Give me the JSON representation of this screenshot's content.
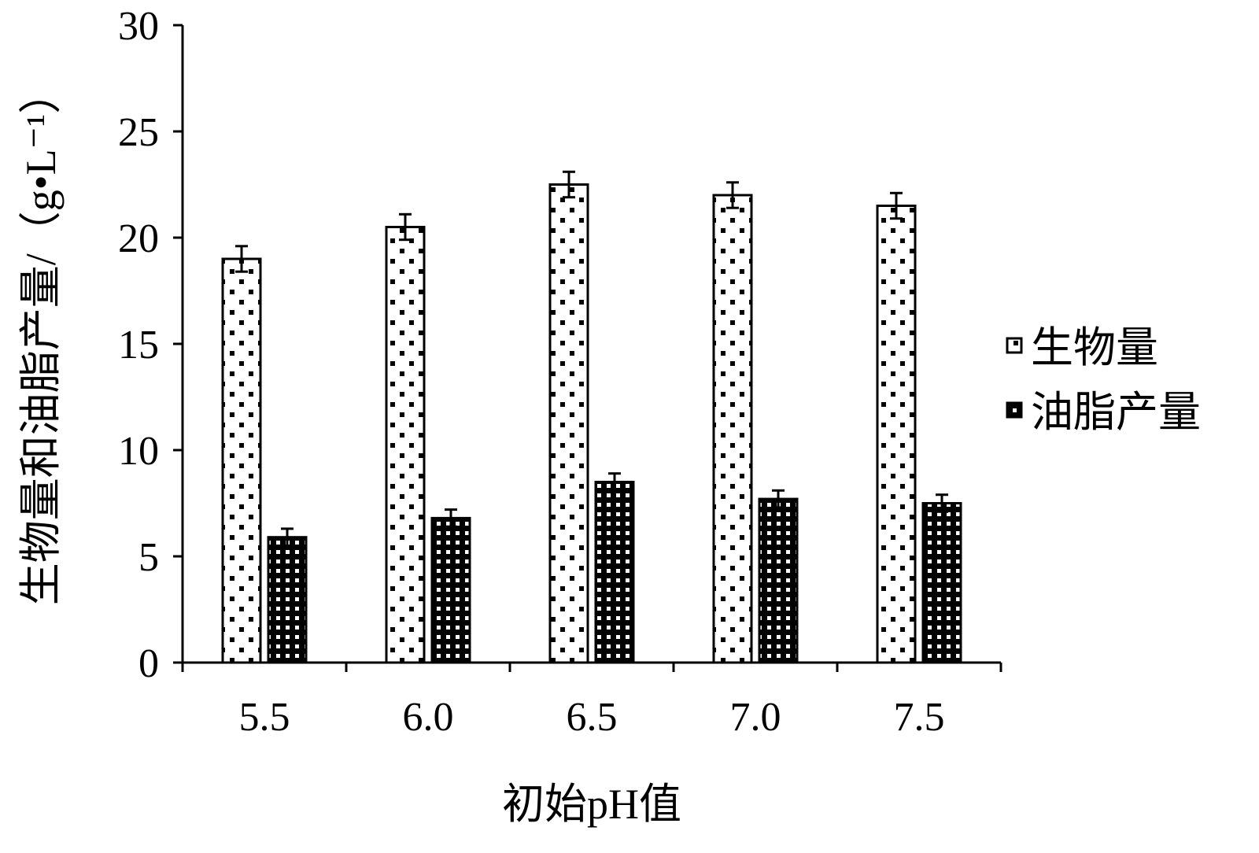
{
  "chart_data": {
    "type": "bar",
    "title": "",
    "xlabel": "初始pH值",
    "ylabel": "生物量和油脂产量/（g•L⁻¹）",
    "categories": [
      "5.5",
      "6.0",
      "6.5",
      "7.0",
      "7.5"
    ],
    "ylim": [
      0,
      30
    ],
    "yticks": [
      "0",
      "5",
      "10",
      "15",
      "20",
      "25",
      "30"
    ],
    "grid": false,
    "legend_position": "right",
    "series": [
      {
        "name": "生物量",
        "values": [
          19.0,
          20.5,
          22.5,
          22.0,
          21.5
        ],
        "errors": [
          0.6,
          0.6,
          0.6,
          0.6,
          0.6
        ],
        "pattern": "dots"
      },
      {
        "name": "油脂产量",
        "values": [
          5.9,
          6.8,
          8.5,
          7.7,
          7.5
        ],
        "errors": [
          0.4,
          0.4,
          0.4,
          0.4,
          0.4
        ],
        "pattern": "grid"
      }
    ]
  }
}
